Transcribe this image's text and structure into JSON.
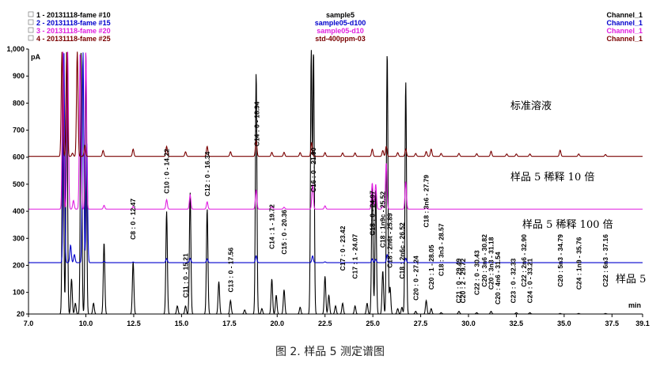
{
  "chart_data": {
    "type": "line",
    "xlabel": "min",
    "ylabel": "pA",
    "xlim": [
      7.0,
      39.1
    ],
    "ylim": [
      20,
      1000
    ],
    "x_ticks": [
      "7.0",
      "10.0",
      "12.5",
      "15.0",
      "17.5",
      "20.0",
      "22.5",
      "25.0",
      "27.5",
      "30.0",
      "32.5",
      "35.0",
      "37.5",
      "39.1"
    ],
    "y_ticks": [
      "20",
      "100",
      "200",
      "300",
      "400",
      "500",
      "600",
      "700",
      "800",
      "900",
      "1,000"
    ],
    "legend": [
      {
        "index": "1",
        "name": "1 - 20131118-fame #10",
        "sample": "sample5",
        "channel": "Channel_1",
        "color": "#000000"
      },
      {
        "index": "2",
        "name": "2 - 20131118-fame #15",
        "sample": "sample05-d100",
        "channel": "Channel_1",
        "color": "#0000cc"
      },
      {
        "index": "3",
        "name": "3 - 20131118-fame #20",
        "sample": "sample05-d10",
        "channel": "Channel_1",
        "color": "#e020e0"
      },
      {
        "index": "4",
        "name": "4 - 20131118-fame #25",
        "sample": "std-400ppm-03",
        "channel": "Channel_1",
        "color": "#7a0000"
      }
    ],
    "trace_labels": [
      "标准溶液",
      "样品 5 稀释 10 倍",
      "样品 5 稀释 100 倍",
      "样品 5"
    ],
    "series": [
      {
        "name": "sample5",
        "color": "#000000",
        "baseline": 20,
        "peaks": [
          [
            8.8,
            990
          ],
          [
            9.0,
            990
          ],
          [
            9.25,
            150
          ],
          [
            9.45,
            60
          ],
          [
            9.75,
            990
          ],
          [
            10.0,
            990
          ],
          [
            10.4,
            60
          ],
          [
            10.95,
            285
          ],
          [
            12.47,
            215
          ],
          [
            14.22,
            400
          ],
          [
            14.78,
            50
          ],
          [
            15.21,
            50
          ],
          [
            15.45,
            470
          ],
          [
            16.34,
            410
          ],
          [
            16.95,
            140
          ],
          [
            17.56,
            70
          ],
          [
            18.3,
            35
          ],
          [
            18.9,
            915
          ],
          [
            19.2,
            40
          ],
          [
            19.72,
            150
          ],
          [
            19.95,
            90
          ],
          [
            20.36,
            110
          ],
          [
            21.2,
            45
          ],
          [
            21.78,
            990
          ],
          [
            21.9,
            990
          ],
          [
            22.5,
            160
          ],
          [
            22.7,
            90
          ],
          [
            23.05,
            50
          ],
          [
            23.42,
            60
          ],
          [
            24.07,
            50
          ],
          [
            24.7,
            60
          ],
          [
            24.97,
            500
          ],
          [
            25.15,
            480
          ],
          [
            25.52,
            180
          ],
          [
            25.75,
            990
          ],
          [
            25.9,
            120
          ],
          [
            26.3,
            40
          ],
          [
            26.52,
            45
          ],
          [
            26.72,
            880
          ],
          [
            27.24,
            30
          ],
          [
            27.79,
            70
          ],
          [
            28.05,
            40
          ],
          [
            28.57,
            25
          ],
          [
            29.5,
            30
          ],
          [
            30.43,
            25
          ],
          [
            31.18,
            30
          ],
          [
            32.5,
            25
          ],
          [
            33.21,
            25
          ],
          [
            34.79,
            22
          ],
          [
            35.76,
            22
          ],
          [
            37.16,
            22
          ]
        ]
      },
      {
        "name": "sample05-d100",
        "color": "#0000cc",
        "baseline": 210,
        "peaks": [
          [
            8.85,
            990
          ],
          [
            9.2,
            275
          ],
          [
            9.4,
            240
          ],
          [
            9.85,
            990
          ],
          [
            10.05,
            650
          ],
          [
            10.95,
            215
          ],
          [
            12.47,
            212
          ],
          [
            14.22,
            225
          ],
          [
            15.45,
            226
          ],
          [
            16.34,
            224
          ],
          [
            18.9,
            235
          ],
          [
            21.85,
            235
          ],
          [
            22.5,
            213
          ],
          [
            24.97,
            224
          ],
          [
            25.15,
            222
          ],
          [
            25.75,
            240
          ],
          [
            26.72,
            226
          ]
        ]
      },
      {
        "name": "sample05-d10",
        "color": "#e020e0",
        "baseline": 408,
        "peaks": [
          [
            8.8,
            990
          ],
          [
            9.05,
            990
          ],
          [
            9.35,
            440
          ],
          [
            9.7,
            990
          ],
          [
            10.0,
            990
          ],
          [
            10.95,
            422
          ],
          [
            12.47,
            418
          ],
          [
            14.22,
            443
          ],
          [
            15.45,
            460
          ],
          [
            16.34,
            435
          ],
          [
            18.9,
            480
          ],
          [
            19.72,
            418
          ],
          [
            20.36,
            415
          ],
          [
            21.85,
            500
          ],
          [
            22.5,
            420
          ],
          [
            24.97,
            505
          ],
          [
            25.15,
            500
          ],
          [
            25.52,
            420
          ],
          [
            25.7,
            580
          ],
          [
            26.72,
            510
          ],
          [
            27.79,
            412
          ]
        ]
      },
      {
        "name": "std-400ppm-03",
        "color": "#7a0000",
        "baseline": 603,
        "peaks": [
          [
            8.75,
            990
          ],
          [
            9.0,
            990
          ],
          [
            9.3,
            615
          ],
          [
            9.55,
            990
          ],
          [
            9.95,
            645
          ],
          [
            10.9,
            625
          ],
          [
            12.47,
            630
          ],
          [
            14.22,
            640
          ],
          [
            15.21,
            620
          ],
          [
            16.34,
            640
          ],
          [
            17.56,
            620
          ],
          [
            18.9,
            660
          ],
          [
            19.72,
            618
          ],
          [
            20.36,
            618
          ],
          [
            21.2,
            617
          ],
          [
            21.8,
            655
          ],
          [
            22.5,
            617
          ],
          [
            23.42,
            616
          ],
          [
            24.07,
            616
          ],
          [
            24.97,
            630
          ],
          [
            25.52,
            625
          ],
          [
            25.7,
            640
          ],
          [
            26.3,
            617
          ],
          [
            26.72,
            630
          ],
          [
            27.24,
            614
          ],
          [
            27.79,
            621
          ],
          [
            28.05,
            630
          ],
          [
            28.57,
            614
          ],
          [
            29.5,
            614
          ],
          [
            30.43,
            613
          ],
          [
            31.18,
            622
          ],
          [
            32.0,
            612
          ],
          [
            32.5,
            612
          ],
          [
            33.21,
            612
          ],
          [
            34.79,
            626
          ],
          [
            35.76,
            612
          ],
          [
            37.16,
            610
          ]
        ]
      }
    ],
    "peak_labels": [
      {
        "text": "C8 : 0 - 12.47",
        "x": 12.47,
        "y": 295
      },
      {
        "text": "C10 : 0 - 14.22",
        "x": 14.22,
        "y": 465
      },
      {
        "text": "C11 : 0 - 15.21",
        "x": 15.21,
        "y": 80
      },
      {
        "text": "C12 : 0 - 16.34",
        "x": 16.34,
        "y": 455
      },
      {
        "text": "C13 : 0 - 17.56",
        "x": 17.56,
        "y": 100
      },
      {
        "text": "C14 : 0 - 18.94",
        "x": 18.94,
        "y": 640
      },
      {
        "text": "C14 : 1 - 19.72",
        "x": 19.72,
        "y": 260
      },
      {
        "text": "C15 : 0 - 20.36",
        "x": 20.36,
        "y": 240
      },
      {
        "text": "C16 : 0 - 21.90",
        "x": 21.9,
        "y": 470
      },
      {
        "text": "C17 : 0 - 23.42",
        "x": 23.42,
        "y": 180
      },
      {
        "text": "C17 : 1 - 24.07",
        "x": 24.07,
        "y": 150
      },
      {
        "text": "C18 : 0 - 24.97",
        "x": 24.97,
        "y": 310
      },
      {
        "text": "C18 : 1n9c - 25.52",
        "x": 25.52,
        "y": 265
      },
      {
        "text": "C18 : 2n6t - 25.89",
        "x": 25.89,
        "y": 190
      },
      {
        "text": "C18 : 2n6c - 26.52",
        "x": 26.52,
        "y": 150
      },
      {
        "text": "C20 : 0 - 27.24",
        "x": 27.24,
        "y": 70
      },
      {
        "text": "C20 : 1 - 28.05",
        "x": 28.05,
        "y": 110
      },
      {
        "text": "C18 : 3n6 - 27.79",
        "x": 27.79,
        "y": 340
      },
      {
        "text": "C18 : 3n3 - 28.57",
        "x": 28.57,
        "y": 160
      },
      {
        "text": "C21 : 0 - 29.49",
        "x": 29.49,
        "y": 60
      },
      {
        "text": "C20 : 2 - 29.72",
        "x": 29.72,
        "y": 60
      },
      {
        "text": "C22 : 0 - 30.43",
        "x": 30.43,
        "y": 90
      },
      {
        "text": "C20 : 3n6 - 30.82",
        "x": 30.82,
        "y": 120
      },
      {
        "text": "C20 : 3n3 - 31.18",
        "x": 31.18,
        "y": 110
      },
      {
        "text": "C20 : 4n6 - 31.54",
        "x": 31.54,
        "y": 55
      },
      {
        "text": "C23 : 0 - 32.33",
        "x": 32.33,
        "y": 60
      },
      {
        "text": "C22 : 2n6 - 32.90",
        "x": 32.9,
        "y": 120
      },
      {
        "text": "C24 : 0 - 33.21",
        "x": 33.21,
        "y": 60
      },
      {
        "text": "C20 : 5n3 - 34.79",
        "x": 34.79,
        "y": 120
      },
      {
        "text": "C24 : 1n9 - 35.76",
        "x": 35.76,
        "y": 110
      },
      {
        "text": "C22 : 6n3 - 37.16",
        "x": 37.16,
        "y": 120
      }
    ]
  },
  "caption": "图 2. 样品 5 测定谱图"
}
